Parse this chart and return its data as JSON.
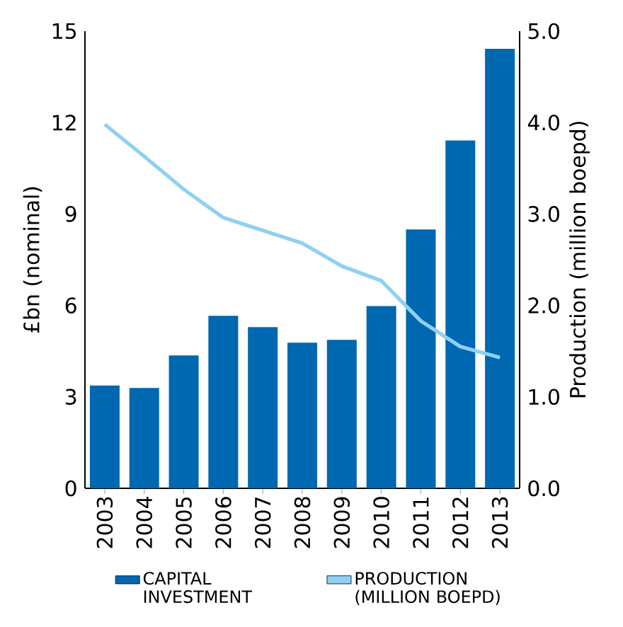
{
  "chart_data": {
    "type": "bar",
    "categories": [
      "2003",
      "2004",
      "2005",
      "2006",
      "2007",
      "2008",
      "2009",
      "2010",
      "2011",
      "2012",
      "2013"
    ],
    "series": [
      {
        "name": "CAPITAL INVESTMENT",
        "color": "#0067b1",
        "values": [
          3.37,
          3.29,
          4.36,
          5.66,
          5.29,
          4.78,
          4.87,
          5.98,
          8.49,
          11.41,
          14.42
        ]
      },
      {
        "name": "PRODUCTION (MILLION BOEPD)",
        "type": "line",
        "axis": "y2",
        "color": "#8fd0f3",
        "values": [
          3.98,
          3.63,
          3.27,
          2.96,
          2.82,
          2.68,
          2.43,
          2.27,
          1.83,
          1.55,
          1.43
        ]
      }
    ],
    "ylabel": "£bn (nominal)",
    "y2label": "Production (million boepd)",
    "ylim": [
      0,
      15
    ],
    "yticks": [
      0,
      3,
      6,
      9,
      12,
      15
    ],
    "y2lim": [
      0,
      5
    ],
    "y2ticks": [
      {
        "value": 0,
        "label": "0.0"
      },
      {
        "value": 1,
        "label": "1.0"
      },
      {
        "value": 2,
        "label": "2.0"
      },
      {
        "value": 3,
        "label": "3.0"
      },
      {
        "value": 4,
        "label": "4.0"
      },
      {
        "value": 5,
        "label": "5.0"
      }
    ],
    "legend": "bottom"
  }
}
